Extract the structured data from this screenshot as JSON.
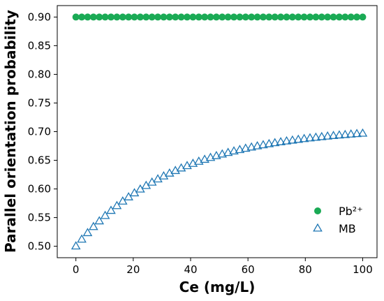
{
  "chart_data": {
    "type": "scatter",
    "xlabel": "Ce (mg/L)",
    "ylabel": "Parallel orientation probability",
    "xlim": [
      -6.5,
      105
    ],
    "ylim": [
      0.48,
      0.92
    ],
    "xticks": [
      "0",
      "20",
      "40",
      "60",
      "80",
      "100"
    ],
    "yticks": [
      "0.50",
      "0.55",
      "0.60",
      "0.65",
      "0.70",
      "0.75",
      "0.80",
      "0.85",
      "0.90"
    ],
    "legend_position": "lower-right",
    "series": [
      {
        "name": "Pb²⁺",
        "marker": "circle",
        "color": "#1aaa55",
        "x": [
          0,
          2.04,
          4.08,
          6.12,
          8.16,
          10.2,
          12.24,
          14.29,
          16.33,
          18.37,
          20.41,
          22.45,
          24.49,
          26.53,
          28.57,
          30.61,
          32.65,
          34.69,
          36.73,
          38.78,
          40.82,
          42.86,
          44.9,
          46.94,
          48.98,
          51.02,
          53.06,
          55.1,
          57.14,
          59.18,
          61.22,
          63.27,
          65.31,
          67.35,
          69.39,
          71.43,
          73.47,
          75.51,
          77.55,
          79.59,
          81.63,
          83.67,
          85.71,
          87.76,
          89.8,
          91.84,
          93.88,
          95.92,
          97.96,
          100
        ],
        "y": [
          0.9,
          0.9,
          0.9,
          0.9,
          0.9,
          0.9,
          0.9,
          0.9,
          0.9,
          0.9,
          0.9,
          0.9,
          0.9,
          0.9,
          0.9,
          0.9,
          0.9,
          0.9,
          0.9,
          0.9,
          0.9,
          0.9,
          0.9,
          0.9,
          0.9,
          0.9,
          0.9,
          0.9,
          0.9,
          0.9,
          0.9,
          0.9,
          0.9,
          0.9,
          0.9,
          0.9,
          0.9,
          0.9,
          0.9,
          0.9,
          0.9,
          0.9,
          0.9,
          0.9,
          0.9,
          0.9,
          0.9,
          0.9,
          0.9,
          0.9
        ]
      },
      {
        "name": "MB",
        "marker": "triangle-open",
        "color": "#1f77b4",
        "x": [
          0,
          2.04,
          4.08,
          6.12,
          8.16,
          10.2,
          12.24,
          14.29,
          16.33,
          18.37,
          20.41,
          22.45,
          24.49,
          26.53,
          28.57,
          30.61,
          32.65,
          34.69,
          36.73,
          38.78,
          40.82,
          42.86,
          44.9,
          46.94,
          48.98,
          51.02,
          53.06,
          55.1,
          57.14,
          59.18,
          61.22,
          63.27,
          65.31,
          67.35,
          69.39,
          71.43,
          73.47,
          75.51,
          77.55,
          79.59,
          81.63,
          83.67,
          85.71,
          87.76,
          89.8,
          91.84,
          93.88,
          95.92,
          97.96,
          100
        ],
        "y": [
          0.5,
          0.5119,
          0.5232,
          0.5338,
          0.5438,
          0.5532,
          0.5621,
          0.5704,
          0.5783,
          0.5857,
          0.5927,
          0.5993,
          0.6056,
          0.6114,
          0.617,
          0.6222,
          0.6271,
          0.6317,
          0.6361,
          0.6402,
          0.6441,
          0.6478,
          0.6512,
          0.6545,
          0.6576,
          0.6605,
          0.6632,
          0.6658,
          0.6682,
          0.6705,
          0.6727,
          0.6747,
          0.6766,
          0.6785,
          0.6802,
          0.6818,
          0.6833,
          0.6847,
          0.6861,
          0.6874,
          0.6886,
          0.6897,
          0.6908,
          0.6918,
          0.6928,
          0.6937,
          0.6945,
          0.6953,
          0.6961,
          0.6968
        ]
      }
    ]
  }
}
